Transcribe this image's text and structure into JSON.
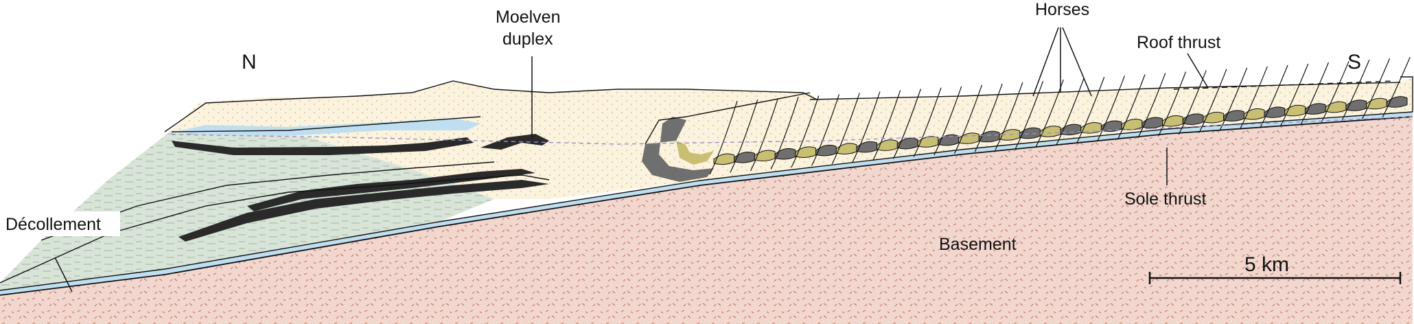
{
  "diagram": {
    "labels": {
      "north": "N",
      "south": "S",
      "moelven_line1": "Moelven",
      "moelven_line2": "duplex",
      "horses": "Horses",
      "roof_thrust": "Roof thrust",
      "sole_thrust": "Sole thrust",
      "decollement": "Décollement",
      "basement": "Basement",
      "scale": "5 km"
    },
    "colors": {
      "basement": "#f2d7cf",
      "basement_speckle": "#b86a5e",
      "sandstone": "#fbf3dd",
      "shale": "#d8e4d8",
      "blue_layer": "#bfdff0",
      "black_layer": "#2a2a2a",
      "gray_horse": "#6f6f6f",
      "olive_horse": "#c9bf73",
      "dashed_marker": "#9a8fc8"
    }
  }
}
